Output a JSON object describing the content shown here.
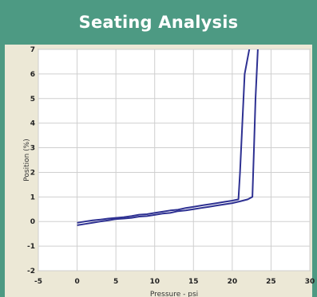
{
  "header": {
    "title": "Seating Analysis"
  },
  "colors": {
    "header_bg": "#4d9a83",
    "panel_bg": "#ece8d6",
    "plot_bg": "#ffffff",
    "grid": "#cfcfcf",
    "series": "#2e3192"
  },
  "chart_data": {
    "type": "line",
    "title": "",
    "xlabel": "Pressure - psi",
    "ylabel": "Position (%)",
    "xlim": [
      -5,
      30
    ],
    "ylim": [
      -2,
      7
    ],
    "xticks": [
      -5,
      0,
      5,
      10,
      15,
      20,
      25,
      30
    ],
    "yticks": [
      7,
      6,
      5,
      4,
      3,
      2,
      1,
      0,
      -1,
      -2
    ],
    "grid": true,
    "series": [
      {
        "values": [
          [
            0,
            -0.15
          ],
          [
            1,
            -0.1
          ],
          [
            2,
            -0.05
          ],
          [
            3,
            0.0
          ],
          [
            4,
            0.05
          ],
          [
            5,
            0.1
          ],
          [
            6,
            0.12
          ],
          [
            7,
            0.15
          ],
          [
            8,
            0.2
          ],
          [
            9,
            0.22
          ],
          [
            10,
            0.27
          ],
          [
            11,
            0.32
          ],
          [
            12,
            0.35
          ],
          [
            13,
            0.42
          ],
          [
            14,
            0.45
          ],
          [
            15,
            0.5
          ],
          [
            16,
            0.55
          ],
          [
            17,
            0.6
          ],
          [
            18,
            0.65
          ],
          [
            19,
            0.7
          ],
          [
            20,
            0.75
          ],
          [
            21,
            0.82
          ],
          [
            22,
            0.9
          ],
          [
            22.6,
            1.0
          ],
          [
            22.8,
            3.0
          ],
          [
            23.0,
            5.0
          ],
          [
            23.3,
            7.0
          ]
        ]
      },
      {
        "values": [
          [
            0,
            -0.05
          ],
          [
            1,
            0.0
          ],
          [
            2,
            0.05
          ],
          [
            3,
            0.08
          ],
          [
            4,
            0.12
          ],
          [
            5,
            0.15
          ],
          [
            6,
            0.18
          ],
          [
            7,
            0.22
          ],
          [
            8,
            0.28
          ],
          [
            9,
            0.3
          ],
          [
            10,
            0.35
          ],
          [
            11,
            0.4
          ],
          [
            12,
            0.45
          ],
          [
            13,
            0.48
          ],
          [
            14,
            0.55
          ],
          [
            15,
            0.6
          ],
          [
            16,
            0.65
          ],
          [
            17,
            0.7
          ],
          [
            18,
            0.75
          ],
          [
            19,
            0.8
          ],
          [
            20,
            0.85
          ],
          [
            20.8,
            0.9
          ],
          [
            21.0,
            2.0
          ],
          [
            21.3,
            4.0
          ],
          [
            21.6,
            6.0
          ],
          [
            22.2,
            7.0
          ]
        ]
      }
    ]
  }
}
